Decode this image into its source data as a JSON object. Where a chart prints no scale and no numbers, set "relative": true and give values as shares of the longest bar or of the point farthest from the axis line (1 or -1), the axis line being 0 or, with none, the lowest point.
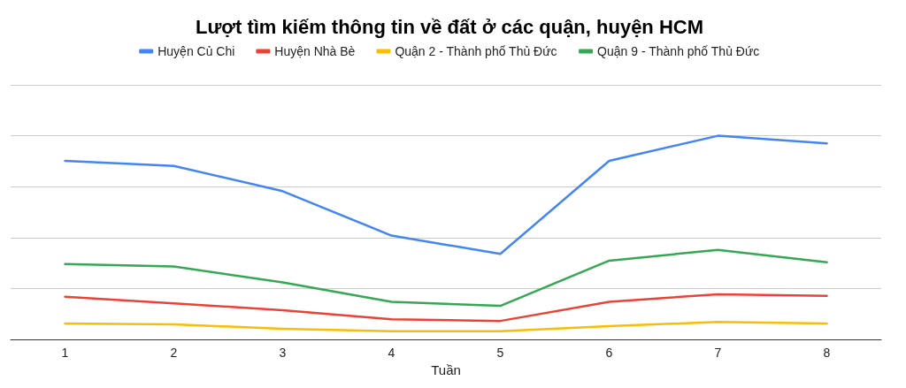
{
  "chart_data": {
    "type": "line",
    "title": "Lượt tìm kiếm thông tin về đất ở các quận, huyện HCM",
    "xlabel": "Tuần",
    "categories": [
      "1",
      "2",
      "3",
      "4",
      "5",
      "6",
      "7",
      "8"
    ],
    "relative": true,
    "grid": "y",
    "legend": "top",
    "marker": "none",
    "line_style": "solid",
    "series": [
      {
        "name": "Huyện Củ Chi",
        "color": "#4285f4",
        "values": [
          0.877,
          0.852,
          0.728,
          0.51,
          0.42,
          0.877,
          1,
          0.963
        ]
      },
      {
        "name": "Huyện Nhà Bè",
        "color": "#ea4335",
        "values": [
          0.21,
          0.177,
          0.144,
          0.099,
          0.091,
          0.185,
          0.222,
          0.214
        ]
      },
      {
        "name": "Quận 2 - Thành phố Thủ Đức",
        "color": "#fbbc04",
        "values": [
          0.078,
          0.074,
          0.053,
          0.041,
          0.041,
          0.066,
          0.086,
          0.078
        ]
      },
      {
        "name": "Quận 9 - Thành phố Thủ Đức",
        "color": "#34a853",
        "values": [
          0.37,
          0.358,
          0.28,
          0.185,
          0.165,
          0.387,
          0.44,
          0.379
        ]
      }
    ]
  }
}
